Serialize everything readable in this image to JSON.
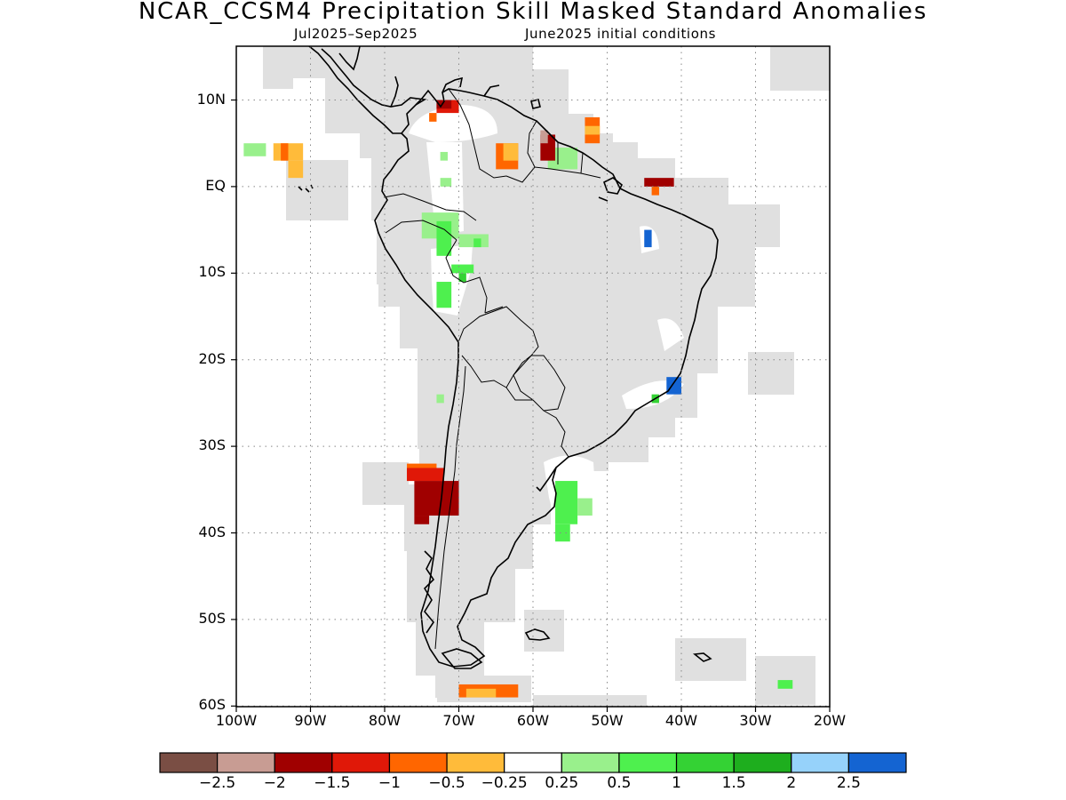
{
  "title": "NCAR_CCSM4 Precipitation Skill Masked Standard Anomalies",
  "subtitle_period": "Jul2025–Sep2025",
  "subtitle_init": "June2025 initial conditions",
  "map": {
    "lon_range": [
      -100,
      -20
    ],
    "lat_range": [
      -60,
      5
    ],
    "grid": true,
    "lon_ticks": [
      {
        "lon": -100,
        "label": "100W"
      },
      {
        "lon": -90,
        "label": "90W"
      },
      {
        "lon": -80,
        "label": "80W"
      },
      {
        "lon": -70,
        "label": "70W"
      },
      {
        "lon": -60,
        "label": "60W"
      },
      {
        "lon": -50,
        "label": "50W"
      },
      {
        "lon": -40,
        "label": "40W"
      },
      {
        "lon": -30,
        "label": "30W"
      },
      {
        "lon": -20,
        "label": "20W"
      }
    ],
    "lat_ticks": [
      {
        "lat": 10,
        "label": "10N"
      },
      {
        "lat": 0,
        "label": "EQ"
      },
      {
        "lat": -10,
        "label": "10S"
      },
      {
        "lat": -20,
        "label": "20S"
      },
      {
        "lat": -30,
        "label": "30S"
      },
      {
        "lat": -40,
        "label": "40S"
      },
      {
        "lat": -50,
        "label": "50S"
      },
      {
        "lat": -60,
        "label": "60S"
      }
    ],
    "mask_color": "#e0e0e0",
    "coast_color": "#000000"
  },
  "colorbar": {
    "colors": [
      "#7a4e44",
      "#c89c93",
      "#a00000",
      "#e01808",
      "#ff6600",
      "#ffbb3a",
      "#ffffff",
      "#99f08c",
      "#4ef04e",
      "#34d234",
      "#1eae1e",
      "#96d2fa",
      "#1464d2"
    ],
    "labels": [
      "−2.5",
      "−2",
      "−1.5",
      "−1",
      "−0.5",
      "−0.25",
      "0.25",
      "0.5",
      "1",
      "1.5",
      "2",
      "2.5"
    ]
  },
  "anomalies": [
    {
      "lon0": -99,
      "lon1": -96,
      "lat0": 3.5,
      "lat1": 5,
      "color": "#99f08c"
    },
    {
      "lon0": -95,
      "lon1": -91,
      "lat0": 3,
      "lat1": 5,
      "color": "#ffbb3a"
    },
    {
      "lon0": -93,
      "lon1": -91,
      "lat0": 1,
      "lat1": 3,
      "color": "#ffbb3a"
    },
    {
      "lon0": -94,
      "lon1": -93,
      "lat0": 3,
      "lat1": 5,
      "color": "#ff6600"
    },
    {
      "lon0": -65,
      "lon1": -62,
      "lat0": 2,
      "lat1": 5,
      "color": "#ff6600"
    },
    {
      "lon0": -64,
      "lon1": -62,
      "lat0": 3,
      "lat1": 5,
      "color": "#ffbb3a"
    },
    {
      "lon0": -58,
      "lon1": -54,
      "lat0": 2,
      "lat1": 4.5,
      "color": "#99f08c"
    },
    {
      "lon0": -73,
      "lon1": -70,
      "lat0": 8.5,
      "lat1": 10,
      "color": "#e01808"
    },
    {
      "lon0": -73,
      "lon1": -71,
      "lat0": 9,
      "lat1": 10,
      "color": "#a00000"
    },
    {
      "lon0": -74,
      "lon1": -73,
      "lat0": 7.5,
      "lat1": 8.5,
      "color": "#ff6600"
    },
    {
      "lon0": -59,
      "lon1": -57,
      "lat0": 3,
      "lat1": 6,
      "color": "#a00000"
    },
    {
      "lon0": -59,
      "lon1": -58,
      "lat0": 5,
      "lat1": 6.5,
      "color": "#c89c93"
    },
    {
      "lon0": -53,
      "lon1": -51,
      "lat0": 5,
      "lat1": 8,
      "color": "#ff6600"
    },
    {
      "lon0": -53,
      "lon1": -51,
      "lat0": 6,
      "lat1": 7,
      "color": "#ffbb3a"
    },
    {
      "lon0": -45,
      "lon1": -41,
      "lat0": 0,
      "lat1": 1,
      "color": "#a00000"
    },
    {
      "lon0": -44,
      "lon1": -43,
      "lat0": -1,
      "lat1": 0,
      "color": "#ff6600"
    },
    {
      "lon0": -72.5,
      "lon1": -71.5,
      "lat0": 3,
      "lat1": 4,
      "color": "#99f08c"
    },
    {
      "lon0": -72.5,
      "lon1": -71,
      "lat0": 0,
      "lat1": 1,
      "color": "#99f08c"
    },
    {
      "lon0": -75,
      "lon1": -70,
      "lat0": -6,
      "lat1": -3,
      "color": "#99f08c"
    },
    {
      "lon0": -73,
      "lon1": -71,
      "lat0": -8,
      "lat1": -4,
      "color": "#4ef04e"
    },
    {
      "lon0": -70,
      "lon1": -66,
      "lat0": -7,
      "lat1": -5.5,
      "color": "#99f08c"
    },
    {
      "lon0": -68,
      "lon1": -67,
      "lat0": -7,
      "lat1": -6,
      "color": "#4ef04e"
    },
    {
      "lon0": -71,
      "lon1": -68,
      "lat0": -10,
      "lat1": -9,
      "color": "#4ef04e"
    },
    {
      "lon0": -70,
      "lon1": -69,
      "lat0": -11,
      "lat1": -10,
      "color": "#34d234"
    },
    {
      "lon0": -73,
      "lon1": -71,
      "lat0": -14,
      "lat1": -11,
      "color": "#4ef04e"
    },
    {
      "lon0": -73,
      "lon1": -72,
      "lat0": -25,
      "lat1": -24,
      "color": "#99f08c"
    },
    {
      "lon0": -45,
      "lon1": -44,
      "lat0": -7,
      "lat1": -5,
      "color": "#1464d2"
    },
    {
      "lon0": -42,
      "lon1": -40,
      "lat0": -24,
      "lat1": -22,
      "color": "#1464d2"
    },
    {
      "lon0": -44,
      "lon1": -43,
      "lat0": -25,
      "lat1": -24,
      "color": "#34d234"
    },
    {
      "lon0": -77,
      "lon1": -73,
      "lat0": -34,
      "lat1": -32,
      "color": "#ff6600"
    },
    {
      "lon0": -77,
      "lon1": -72,
      "lat0": -34,
      "lat1": -32.5,
      "color": "#e01808"
    },
    {
      "lon0": -76,
      "lon1": -70,
      "lat0": -38,
      "lat1": -34,
      "color": "#a00000"
    },
    {
      "lon0": -76,
      "lon1": -74,
      "lat0": -39,
      "lat1": -38,
      "color": "#a00000"
    },
    {
      "lon0": -57,
      "lon1": -54,
      "lat0": -39,
      "lat1": -34,
      "color": "#4ef04e"
    },
    {
      "lon0": -54,
      "lon1": -52,
      "lat0": -38,
      "lat1": -36,
      "color": "#99f08c"
    },
    {
      "lon0": -57,
      "lon1": -55,
      "lat0": -41,
      "lat1": -39,
      "color": "#4ef04e"
    },
    {
      "lon0": -70,
      "lon1": -62,
      "lat0": -59,
      "lat1": -57.5,
      "color": "#ff6600"
    },
    {
      "lon0": -69,
      "lon1": -65,
      "lat0": -59,
      "lat1": -58,
      "color": "#ffbb3a"
    },
    {
      "lon0": -27,
      "lon1": -25,
      "lat0": -58,
      "lat1": -57,
      "color": "#4ef04e"
    }
  ]
}
